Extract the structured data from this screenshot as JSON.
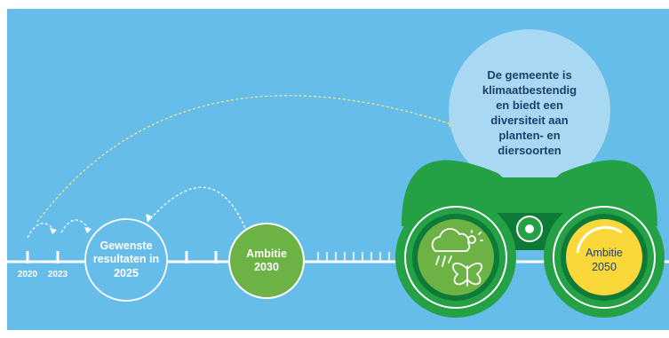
{
  "timeline": {
    "year_start": "2020",
    "year_mid": "2023",
    "results_circle": {
      "line1": "Gewenste",
      "line2": "resultaten in",
      "line3": "2025"
    },
    "ambition_2030": {
      "line1": "Ambitie",
      "line2": "2030"
    },
    "ambition_2050": {
      "line1": "Ambitie",
      "line2": "2050"
    }
  },
  "vision_bubble": {
    "lines": [
      "De gemeente is",
      "klimaatbestendig",
      "en biedt een",
      "diversiteit aan",
      "planten- en",
      "diersoorten"
    ]
  },
  "icons": {
    "left_lens": "weather-and-butterfly-icon",
    "binoculars": "binoculars-icon"
  },
  "colors": {
    "background": "#67bdea",
    "bubble": "#a9d8f2",
    "text_dark": "#1d3f6e",
    "green_circle": "#6cb244",
    "binocular_green": "#24a045",
    "binocular_dark": "#0d7a37",
    "yellow": "#fbd83a",
    "white": "#ffffff"
  }
}
